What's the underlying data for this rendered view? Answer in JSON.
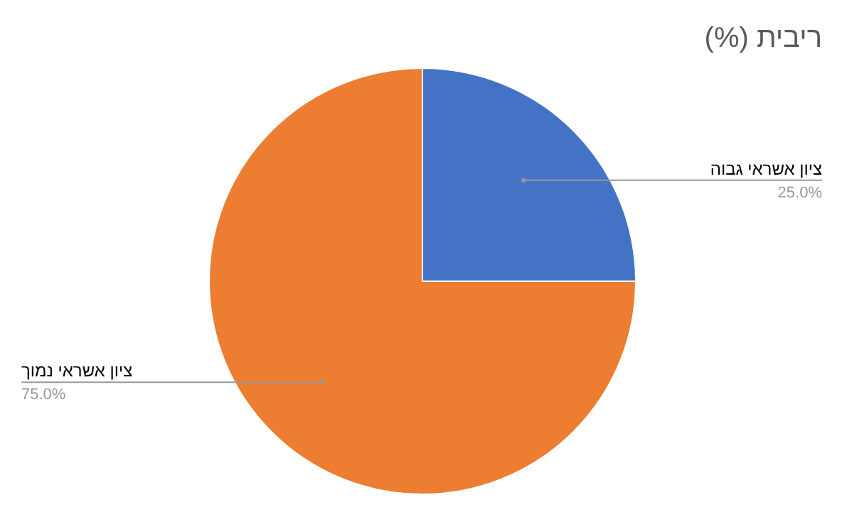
{
  "chart_data": {
    "type": "pie",
    "title": "ריבית (%)",
    "categories": [
      "ציון אשראי גבוה",
      "ציון אשראי נמוך"
    ],
    "values": [
      25,
      75
    ],
    "colors": [
      "#4472c4",
      "#ed7d31"
    ],
    "value_labels": [
      "25.0%",
      "75.0%"
    ]
  }
}
